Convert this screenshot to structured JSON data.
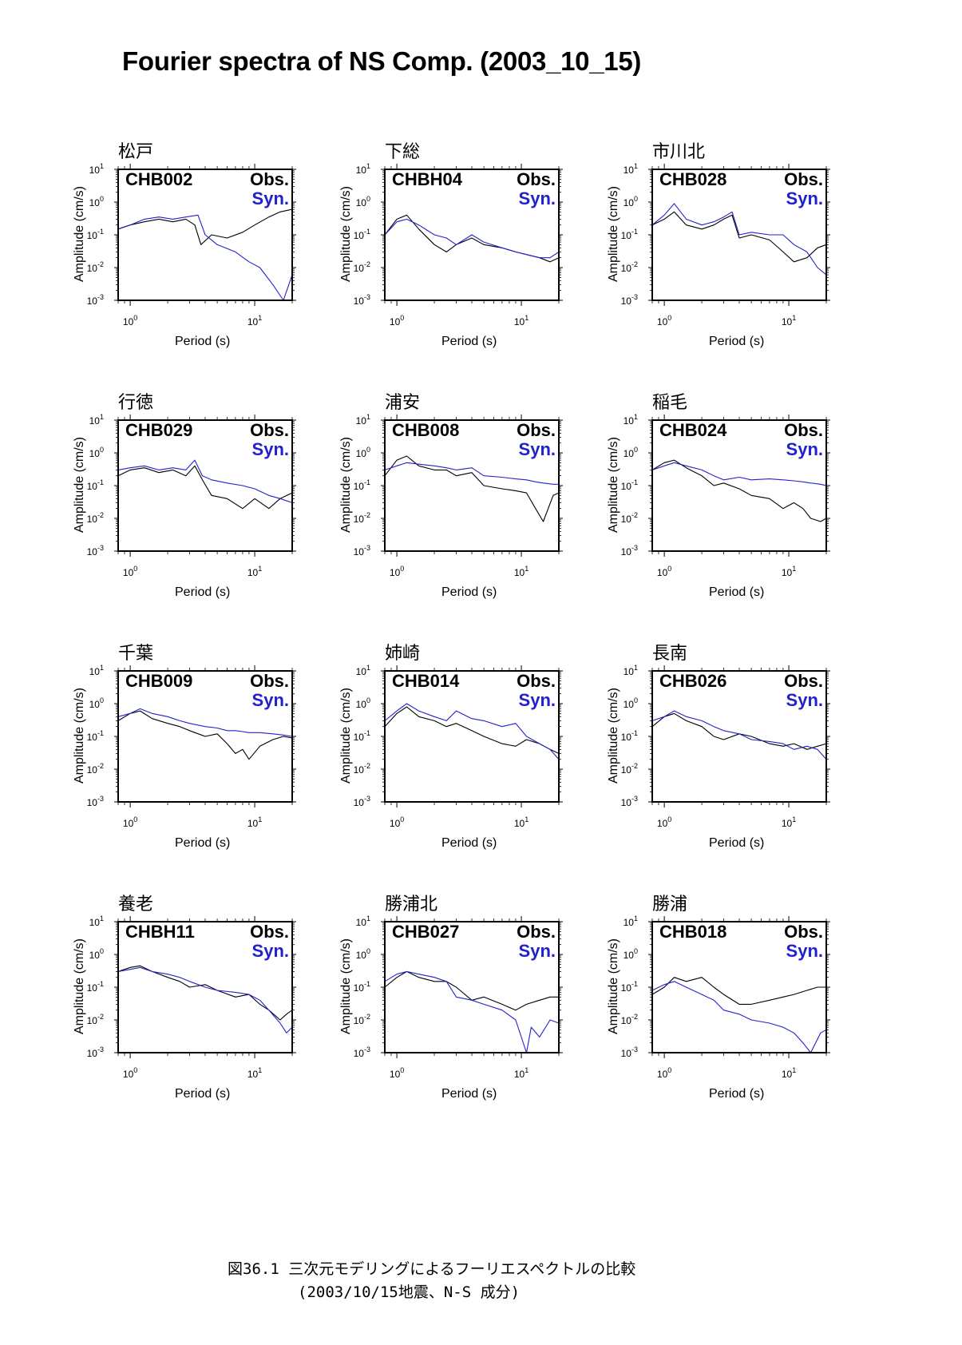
{
  "page": {
    "title": "Fourier spectra of NS Comp. (2003_10_15)",
    "caption_line1": "図36.1 三次元モデリングによるフーリエスペクトルの比較",
    "caption_line2": "(2003/10/15地震、N-S 成分)"
  },
  "legend": {
    "obs": "Obs.",
    "syn": "Syn.",
    "obs_color": "#000000",
    "syn_color": "#2222cc"
  },
  "axes": {
    "xlabel": "Period (s)",
    "ylabel": "Amplitude (cm/s)",
    "x_tick_labels": [
      "10^0",
      "10^1"
    ],
    "y_tick_labels": [
      "10^1",
      "10^0",
      "10^-1",
      "10^-2",
      "10^-3"
    ]
  },
  "chart_data": [
    {
      "type": "line",
      "station_name": "松戸",
      "code": "CHB002",
      "xscale": "log",
      "yscale": "log",
      "xlim": [
        0.8,
        20
      ],
      "ylim": [
        0.001,
        10
      ],
      "series": [
        {
          "name": "Obs.",
          "x": [
            0.8,
            1.0,
            1.3,
            1.7,
            2.2,
            2.8,
            3.3,
            3.7,
            4.5,
            6,
            8,
            10,
            13,
            16,
            20
          ],
          "y": [
            0.15,
            0.2,
            0.25,
            0.3,
            0.25,
            0.3,
            0.2,
            0.05,
            0.1,
            0.08,
            0.12,
            0.2,
            0.35,
            0.5,
            0.6
          ]
        },
        {
          "name": "Syn.",
          "x": [
            0.8,
            1.0,
            1.3,
            1.7,
            2.2,
            2.8,
            3.5,
            4,
            5,
            7,
            9,
            11,
            14,
            17,
            20
          ],
          "y": [
            0.15,
            0.2,
            0.3,
            0.35,
            0.3,
            0.35,
            0.4,
            0.1,
            0.05,
            0.03,
            0.015,
            0.01,
            0.003,
            0.001,
            0.006
          ]
        }
      ]
    },
    {
      "type": "line",
      "station_name": "下総",
      "code": "CHBH04",
      "xscale": "log",
      "yscale": "log",
      "xlim": [
        0.8,
        20
      ],
      "ylim": [
        0.001,
        10
      ],
      "series": [
        {
          "name": "Obs.",
          "x": [
            0.8,
            1.0,
            1.2,
            1.5,
            2,
            2.5,
            3,
            4,
            5,
            7,
            9,
            11,
            14,
            17,
            20
          ],
          "y": [
            0.1,
            0.3,
            0.4,
            0.15,
            0.05,
            0.03,
            0.05,
            0.08,
            0.05,
            0.04,
            0.03,
            0.025,
            0.02,
            0.015,
            0.02
          ]
        },
        {
          "name": "Syn.",
          "x": [
            0.8,
            1.0,
            1.2,
            1.5,
            2,
            2.5,
            3,
            4,
            5,
            7,
            9,
            11,
            14,
            17,
            20
          ],
          "y": [
            0.1,
            0.25,
            0.3,
            0.2,
            0.1,
            0.08,
            0.05,
            0.1,
            0.06,
            0.04,
            0.03,
            0.025,
            0.02,
            0.02,
            0.03
          ]
        }
      ]
    },
    {
      "type": "line",
      "station_name": "市川北",
      "code": "CHB028",
      "xscale": "log",
      "yscale": "log",
      "xlim": [
        0.8,
        20
      ],
      "ylim": [
        0.001,
        10
      ],
      "series": [
        {
          "name": "Obs.",
          "x": [
            0.8,
            1.0,
            1.2,
            1.5,
            2,
            2.5,
            3,
            3.5,
            4,
            5,
            7,
            9,
            11,
            14,
            17,
            20
          ],
          "y": [
            0.2,
            0.3,
            0.5,
            0.2,
            0.15,
            0.2,
            0.3,
            0.4,
            0.08,
            0.1,
            0.07,
            0.03,
            0.015,
            0.02,
            0.04,
            0.05
          ]
        },
        {
          "name": "Syn.",
          "x": [
            0.8,
            1.0,
            1.2,
            1.5,
            2,
            2.5,
            3,
            3.5,
            4,
            5,
            7,
            9,
            11,
            14,
            17,
            20
          ],
          "y": [
            0.2,
            0.4,
            0.9,
            0.3,
            0.2,
            0.25,
            0.35,
            0.5,
            0.1,
            0.12,
            0.1,
            0.1,
            0.05,
            0.03,
            0.01,
            0.006
          ]
        }
      ]
    },
    {
      "type": "line",
      "station_name": "行徳",
      "code": "CHB029",
      "xscale": "log",
      "yscale": "log",
      "xlim": [
        0.8,
        20
      ],
      "ylim": [
        0.001,
        10
      ],
      "series": [
        {
          "name": "Obs.",
          "x": [
            0.8,
            1.0,
            1.3,
            1.7,
            2.2,
            2.8,
            3.3,
            3.8,
            4.5,
            6,
            8,
            10,
            13,
            16,
            20
          ],
          "y": [
            0.2,
            0.3,
            0.35,
            0.25,
            0.3,
            0.2,
            0.4,
            0.15,
            0.05,
            0.04,
            0.02,
            0.04,
            0.02,
            0.04,
            0.06
          ]
        },
        {
          "name": "Syn.",
          "x": [
            0.8,
            1.0,
            1.3,
            1.7,
            2.2,
            2.8,
            3.3,
            3.8,
            4.5,
            6,
            8,
            10,
            13,
            16,
            20
          ],
          "y": [
            0.3,
            0.35,
            0.4,
            0.3,
            0.35,
            0.3,
            0.6,
            0.2,
            0.15,
            0.12,
            0.1,
            0.08,
            0.05,
            0.04,
            0.03
          ]
        }
      ]
    },
    {
      "type": "line",
      "station_name": "浦安",
      "code": "CHB008",
      "xscale": "log",
      "yscale": "log",
      "xlim": [
        0.8,
        20
      ],
      "ylim": [
        0.001,
        10
      ],
      "series": [
        {
          "name": "Obs.",
          "x": [
            0.8,
            1.0,
            1.2,
            1.5,
            2,
            2.5,
            3,
            4,
            5,
            7,
            9,
            11,
            13,
            15,
            18,
            20
          ],
          "y": [
            0.2,
            0.6,
            0.8,
            0.4,
            0.3,
            0.3,
            0.2,
            0.25,
            0.1,
            0.08,
            0.07,
            0.06,
            0.02,
            0.008,
            0.05,
            0.06
          ]
        },
        {
          "name": "Syn.",
          "x": [
            0.8,
            1.0,
            1.2,
            1.5,
            2,
            2.5,
            3,
            4,
            5,
            7,
            9,
            11,
            13,
            15,
            18,
            20
          ],
          "y": [
            0.3,
            0.4,
            0.5,
            0.45,
            0.4,
            0.35,
            0.3,
            0.35,
            0.2,
            0.18,
            0.16,
            0.15,
            0.13,
            0.12,
            0.11,
            0.11
          ]
        }
      ]
    },
    {
      "type": "line",
      "station_name": "稲毛",
      "code": "CHB024",
      "xscale": "log",
      "yscale": "log",
      "xlim": [
        0.8,
        20
      ],
      "ylim": [
        0.001,
        10
      ],
      "series": [
        {
          "name": "Obs.",
          "x": [
            0.8,
            1.0,
            1.2,
            1.5,
            2,
            2.5,
            3,
            4,
            5,
            7,
            9,
            11,
            13,
            15,
            18,
            20
          ],
          "y": [
            0.3,
            0.5,
            0.6,
            0.35,
            0.2,
            0.1,
            0.12,
            0.08,
            0.05,
            0.04,
            0.02,
            0.03,
            0.02,
            0.01,
            0.008,
            0.01
          ]
        },
        {
          "name": "Syn.",
          "x": [
            0.8,
            1.0,
            1.2,
            1.5,
            2,
            2.5,
            3,
            4,
            5,
            7,
            9,
            11,
            13,
            15,
            18,
            20
          ],
          "y": [
            0.3,
            0.4,
            0.5,
            0.4,
            0.3,
            0.2,
            0.15,
            0.18,
            0.15,
            0.16,
            0.15,
            0.14,
            0.13,
            0.12,
            0.11,
            0.1
          ]
        }
      ]
    },
    {
      "type": "line",
      "station_name": "千葉",
      "code": "CHB009",
      "xscale": "log",
      "yscale": "log",
      "xlim": [
        0.8,
        20
      ],
      "ylim": [
        0.001,
        10
      ],
      "series": [
        {
          "name": "Obs.",
          "x": [
            0.8,
            1.0,
            1.2,
            1.5,
            2,
            2.5,
            3,
            4,
            5,
            6,
            7,
            8,
            9,
            11,
            14,
            17,
            20
          ],
          "y": [
            0.3,
            0.5,
            0.6,
            0.35,
            0.25,
            0.2,
            0.15,
            0.1,
            0.12,
            0.06,
            0.03,
            0.04,
            0.02,
            0.05,
            0.08,
            0.1,
            0.09
          ]
        },
        {
          "name": "Syn.",
          "x": [
            0.8,
            1.0,
            1.2,
            1.5,
            2,
            2.5,
            3,
            4,
            5,
            6,
            7,
            8,
            9,
            11,
            14,
            17,
            20
          ],
          "y": [
            0.4,
            0.5,
            0.7,
            0.5,
            0.4,
            0.3,
            0.25,
            0.2,
            0.18,
            0.15,
            0.15,
            0.14,
            0.13,
            0.13,
            0.12,
            0.11,
            0.1
          ]
        }
      ]
    },
    {
      "type": "line",
      "station_name": "姉崎",
      "code": "CHB014",
      "xscale": "log",
      "yscale": "log",
      "xlim": [
        0.8,
        20
      ],
      "ylim": [
        0.001,
        10
      ],
      "series": [
        {
          "name": "Obs.",
          "x": [
            0.8,
            1.0,
            1.2,
            1.5,
            2,
            2.5,
            3,
            4,
            5,
            7,
            9,
            11,
            14,
            17,
            20
          ],
          "y": [
            0.2,
            0.5,
            0.8,
            0.4,
            0.3,
            0.2,
            0.25,
            0.15,
            0.1,
            0.06,
            0.05,
            0.08,
            0.06,
            0.04,
            0.03
          ]
        },
        {
          "name": "Syn.",
          "x": [
            0.8,
            1.0,
            1.2,
            1.5,
            2,
            2.5,
            3,
            4,
            5,
            7,
            9,
            11,
            14,
            17,
            20
          ],
          "y": [
            0.3,
            0.6,
            1.0,
            0.6,
            0.4,
            0.3,
            0.6,
            0.35,
            0.3,
            0.2,
            0.25,
            0.1,
            0.06,
            0.04,
            0.02
          ]
        }
      ]
    },
    {
      "type": "line",
      "station_name": "長南",
      "code": "CHB026",
      "xscale": "log",
      "yscale": "log",
      "xlim": [
        0.8,
        20
      ],
      "ylim": [
        0.001,
        10
      ],
      "series": [
        {
          "name": "Obs.",
          "x": [
            0.8,
            1.0,
            1.2,
            1.5,
            2,
            2.5,
            3,
            4,
            5,
            7,
            9,
            11,
            14,
            17,
            20
          ],
          "y": [
            0.2,
            0.4,
            0.5,
            0.3,
            0.2,
            0.1,
            0.08,
            0.12,
            0.1,
            0.06,
            0.05,
            0.06,
            0.04,
            0.05,
            0.06
          ]
        },
        {
          "name": "Syn.",
          "x": [
            0.8,
            1.0,
            1.2,
            1.5,
            2,
            2.5,
            3,
            4,
            5,
            7,
            9,
            11,
            14,
            17,
            20
          ],
          "y": [
            0.3,
            0.4,
            0.6,
            0.4,
            0.3,
            0.2,
            0.15,
            0.12,
            0.08,
            0.07,
            0.06,
            0.04,
            0.05,
            0.04,
            0.02
          ]
        }
      ]
    },
    {
      "type": "line",
      "station_name": "養老",
      "code": "CHBH11",
      "xscale": "log",
      "yscale": "log",
      "xlim": [
        0.8,
        20
      ],
      "ylim": [
        0.001,
        10
      ],
      "series": [
        {
          "name": "Obs.",
          "x": [
            0.8,
            1.0,
            1.2,
            1.5,
            2,
            2.5,
            3,
            4,
            5,
            7,
            9,
            11,
            13,
            16,
            18,
            20
          ],
          "y": [
            0.3,
            0.4,
            0.45,
            0.3,
            0.2,
            0.15,
            0.1,
            0.12,
            0.08,
            0.05,
            0.06,
            0.03,
            0.02,
            0.01,
            0.015,
            0.02
          ]
        },
        {
          "name": "Syn.",
          "x": [
            0.8,
            1.0,
            1.2,
            1.5,
            2,
            2.5,
            3,
            4,
            5,
            7,
            9,
            11,
            13,
            16,
            18,
            20
          ],
          "y": [
            0.3,
            0.35,
            0.4,
            0.3,
            0.25,
            0.2,
            0.15,
            0.1,
            0.08,
            0.07,
            0.06,
            0.04,
            0.02,
            0.008,
            0.004,
            0.006
          ]
        }
      ]
    },
    {
      "type": "line",
      "station_name": "勝浦北",
      "code": "CHB027",
      "xscale": "log",
      "yscale": "log",
      "xlim": [
        0.8,
        20
      ],
      "ylim": [
        0.001,
        10
      ],
      "series": [
        {
          "name": "Obs.",
          "x": [
            0.8,
            1.0,
            1.2,
            1.5,
            2,
            2.5,
            3,
            4,
            5,
            7,
            9,
            11,
            14,
            17,
            20
          ],
          "y": [
            0.1,
            0.2,
            0.3,
            0.2,
            0.15,
            0.15,
            0.1,
            0.04,
            0.05,
            0.03,
            0.02,
            0.03,
            0.04,
            0.05,
            0.05
          ]
        },
        {
          "name": "Syn.",
          "x": [
            0.8,
            1.0,
            1.2,
            1.5,
            2,
            2.5,
            3,
            4,
            5,
            7,
            9,
            11,
            12,
            14,
            17,
            20
          ],
          "y": [
            0.15,
            0.25,
            0.3,
            0.25,
            0.2,
            0.15,
            0.05,
            0.04,
            0.03,
            0.02,
            0.01,
            0.001,
            0.006,
            0.003,
            0.01,
            0.008
          ]
        }
      ]
    },
    {
      "type": "line",
      "station_name": "勝浦",
      "code": "CHB018",
      "xscale": "log",
      "yscale": "log",
      "xlim": [
        0.8,
        20
      ],
      "ylim": [
        0.001,
        10
      ],
      "series": [
        {
          "name": "Obs.",
          "x": [
            0.8,
            1.0,
            1.2,
            1.5,
            2,
            2.5,
            3,
            4,
            5,
            7,
            9,
            11,
            14,
            17,
            20
          ],
          "y": [
            0.06,
            0.1,
            0.2,
            0.15,
            0.2,
            0.1,
            0.06,
            0.03,
            0.03,
            0.04,
            0.05,
            0.06,
            0.08,
            0.1,
            0.1
          ]
        },
        {
          "name": "Syn.",
          "x": [
            0.8,
            1.0,
            1.2,
            1.5,
            2,
            2.5,
            3,
            4,
            5,
            7,
            9,
            11,
            13,
            15,
            18,
            20
          ],
          "y": [
            0.08,
            0.12,
            0.15,
            0.1,
            0.06,
            0.04,
            0.02,
            0.015,
            0.01,
            0.008,
            0.006,
            0.004,
            0.002,
            0.001,
            0.004,
            0.005
          ]
        }
      ]
    }
  ]
}
